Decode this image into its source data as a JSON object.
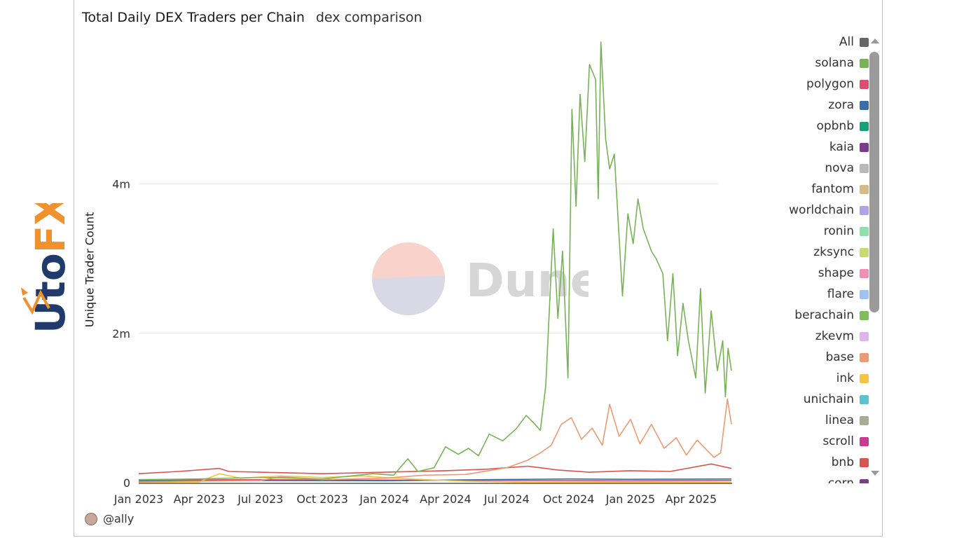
{
  "chart_data": {
    "type": "line",
    "title": "Total Daily DEX Traders per Chain",
    "subtitle": "dex comparison",
    "xlabel": "",
    "ylabel": "Unique Trader Count",
    "x_ticks": [
      "Jan 2023",
      "Apr 2023",
      "Jul 2023",
      "Oct 2023",
      "Jan 2024",
      "Apr 2024",
      "Jul 2024",
      "Oct 2024",
      "Jan 2025",
      "Apr 2025"
    ],
    "x_range": [
      "2023-01-01",
      "2025-06-01"
    ],
    "y_ticks": [
      {
        "value": 0,
        "label": "0"
      },
      {
        "value": 2000000,
        "label": "2m"
      },
      {
        "value": 4000000,
        "label": "4m"
      }
    ],
    "ylim": [
      0,
      5900000
    ],
    "grid": "horizontal",
    "legend_position": "right",
    "series": [
      {
        "name": "solana",
        "color": "#77b356",
        "points": [
          [
            "2023-01-01",
            40000
          ],
          [
            "2023-04-01",
            50000
          ],
          [
            "2023-07-01",
            70000
          ],
          [
            "2023-10-01",
            50000
          ],
          [
            "2023-12-15",
            120000
          ],
          [
            "2024-01-15",
            100000
          ],
          [
            "2024-02-05",
            320000
          ],
          [
            "2024-02-20",
            150000
          ],
          [
            "2024-03-15",
            200000
          ],
          [
            "2024-04-01",
            480000
          ],
          [
            "2024-04-20",
            380000
          ],
          [
            "2024-05-05",
            460000
          ],
          [
            "2024-05-20",
            360000
          ],
          [
            "2024-06-05",
            650000
          ],
          [
            "2024-06-25",
            560000
          ],
          [
            "2024-07-15",
            720000
          ],
          [
            "2024-07-30",
            900000
          ],
          [
            "2024-08-10",
            800000
          ],
          [
            "2024-08-20",
            700000
          ],
          [
            "2024-08-28",
            1300000
          ],
          [
            "2024-09-08",
            3400000
          ],
          [
            "2024-09-15",
            2200000
          ],
          [
            "2024-09-22",
            3100000
          ],
          [
            "2024-09-30",
            1400000
          ],
          [
            "2024-10-06",
            5000000
          ],
          [
            "2024-10-12",
            3700000
          ],
          [
            "2024-10-18",
            5200000
          ],
          [
            "2024-10-25",
            4300000
          ],
          [
            "2024-11-01",
            5600000
          ],
          [
            "2024-11-10",
            5400000
          ],
          [
            "2024-11-14",
            3800000
          ],
          [
            "2024-11-18",
            5900000
          ],
          [
            "2024-11-25",
            4600000
          ],
          [
            "2024-12-01",
            4200000
          ],
          [
            "2024-12-08",
            4400000
          ],
          [
            "2024-12-20",
            2500000
          ],
          [
            "2024-12-28",
            3600000
          ],
          [
            "2025-01-05",
            3200000
          ],
          [
            "2025-01-12",
            3800000
          ],
          [
            "2025-01-20",
            3400000
          ],
          [
            "2025-02-01",
            3100000
          ],
          [
            "2025-02-08",
            3000000
          ],
          [
            "2025-02-18",
            2800000
          ],
          [
            "2025-02-25",
            1900000
          ],
          [
            "2025-03-05",
            2800000
          ],
          [
            "2025-03-12",
            1700000
          ],
          [
            "2025-03-20",
            2400000
          ],
          [
            "2025-03-28",
            1900000
          ],
          [
            "2025-04-08",
            1400000
          ],
          [
            "2025-04-15",
            2600000
          ],
          [
            "2025-04-22",
            1200000
          ],
          [
            "2025-05-01",
            2300000
          ],
          [
            "2025-05-10",
            1500000
          ],
          [
            "2025-05-18",
            1900000
          ],
          [
            "2025-05-22",
            1150000
          ],
          [
            "2025-05-26",
            1800000
          ],
          [
            "2025-05-31",
            1500000
          ]
        ]
      },
      {
        "name": "base",
        "color": "#ec9a72",
        "points": [
          [
            "2023-01-01",
            10000
          ],
          [
            "2023-07-01",
            30000
          ],
          [
            "2023-08-01",
            80000
          ],
          [
            "2023-10-01",
            40000
          ],
          [
            "2024-01-01",
            60000
          ],
          [
            "2024-03-01",
            100000
          ],
          [
            "2024-05-01",
            110000
          ],
          [
            "2024-07-01",
            200000
          ],
          [
            "2024-08-01",
            300000
          ],
          [
            "2024-08-20",
            400000
          ],
          [
            "2024-09-05",
            500000
          ],
          [
            "2024-09-20",
            780000
          ],
          [
            "2024-10-05",
            870000
          ],
          [
            "2024-10-20",
            580000
          ],
          [
            "2024-11-05",
            730000
          ],
          [
            "2024-11-20",
            500000
          ],
          [
            "2024-12-01",
            1050000
          ],
          [
            "2024-12-15",
            620000
          ],
          [
            "2025-01-01",
            850000
          ],
          [
            "2025-01-15",
            520000
          ],
          [
            "2025-02-01",
            780000
          ],
          [
            "2025-02-20",
            460000
          ],
          [
            "2025-03-10",
            600000
          ],
          [
            "2025-03-25",
            370000
          ],
          [
            "2025-04-10",
            570000
          ],
          [
            "2025-04-25",
            430000
          ],
          [
            "2025-05-05",
            340000
          ],
          [
            "2025-05-15",
            400000
          ],
          [
            "2025-05-25",
            1120000
          ],
          [
            "2025-05-31",
            780000
          ]
        ]
      },
      {
        "name": "bnb",
        "color": "#d9534f",
        "points": [
          [
            "2023-01-01",
            120000
          ],
          [
            "2023-03-01",
            150000
          ],
          [
            "2023-05-01",
            190000
          ],
          [
            "2023-05-15",
            150000
          ],
          [
            "2023-07-01",
            140000
          ],
          [
            "2023-10-01",
            120000
          ],
          [
            "2024-01-01",
            140000
          ],
          [
            "2024-04-01",
            160000
          ],
          [
            "2024-06-01",
            180000
          ],
          [
            "2024-08-01",
            220000
          ],
          [
            "2024-09-15",
            170000
          ],
          [
            "2024-11-01",
            140000
          ],
          [
            "2025-01-01",
            160000
          ],
          [
            "2025-03-01",
            150000
          ],
          [
            "2025-05-01",
            250000
          ],
          [
            "2025-05-31",
            190000
          ]
        ]
      },
      {
        "name": "ink",
        "color": "#f4c542",
        "points": [
          [
            "2023-01-01",
            5000
          ],
          [
            "2023-04-01",
            10000
          ],
          [
            "2023-05-01",
            120000
          ],
          [
            "2023-06-01",
            60000
          ],
          [
            "2023-08-01",
            90000
          ],
          [
            "2023-10-01",
            70000
          ],
          [
            "2023-12-01",
            90000
          ],
          [
            "2024-01-15",
            60000
          ],
          [
            "2024-03-01",
            40000
          ],
          [
            "2024-05-01",
            20000
          ],
          [
            "2024-08-01",
            5000
          ],
          [
            "2025-05-31",
            5000
          ]
        ]
      },
      {
        "name": "zora",
        "color": "#3a6ea8",
        "points": [
          [
            "2023-01-01",
            20000
          ],
          [
            "2023-06-01",
            30000
          ],
          [
            "2024-01-01",
            25000
          ],
          [
            "2024-06-01",
            40000
          ],
          [
            "2024-10-01",
            50000
          ],
          [
            "2025-01-01",
            45000
          ],
          [
            "2025-05-31",
            50000
          ]
        ]
      },
      {
        "name": "polygon",
        "color": "#e04b72",
        "points": [
          [
            "2023-01-01",
            30000
          ],
          [
            "2023-06-01",
            40000
          ],
          [
            "2024-01-01",
            35000
          ],
          [
            "2024-06-01",
            30000
          ],
          [
            "2025-01-01",
            25000
          ],
          [
            "2025-05-31",
            30000
          ]
        ]
      }
    ]
  },
  "legend": {
    "items": [
      {
        "label": "All",
        "color": "#666666"
      },
      {
        "label": "solana",
        "color": "#77b356"
      },
      {
        "label": "polygon",
        "color": "#e04b72"
      },
      {
        "label": "zora",
        "color": "#3a6ea8"
      },
      {
        "label": "opbnb",
        "color": "#16a17b"
      },
      {
        "label": "kaia",
        "color": "#7b3c8c"
      },
      {
        "label": "nova",
        "color": "#b9b9b9"
      },
      {
        "label": "fantom",
        "color": "#d6bc8a"
      },
      {
        "label": "worldchain",
        "color": "#b3a3e6"
      },
      {
        "label": "ronin",
        "color": "#8fe0ad"
      },
      {
        "label": "zksync",
        "color": "#c9da6e"
      },
      {
        "label": "shape",
        "color": "#f08fb4"
      },
      {
        "label": "flare",
        "color": "#9fc2f2"
      },
      {
        "label": "berachain",
        "color": "#7fbf5a"
      },
      {
        "label": "zkevm",
        "color": "#e0b3f0"
      },
      {
        "label": "base",
        "color": "#ec9a72"
      },
      {
        "label": "ink",
        "color": "#f4c542"
      },
      {
        "label": "unichain",
        "color": "#5bc2cf"
      },
      {
        "label": "linea",
        "color": "#a8ac93"
      },
      {
        "label": "scroll",
        "color": "#c93a91"
      },
      {
        "label": "bnb",
        "color": "#d9534f"
      },
      {
        "label": "corn",
        "color": "#7b3c8c"
      }
    ]
  },
  "author": "@ally",
  "watermark": {
    "text": "Dune"
  },
  "logo": {
    "text": "UtoFX",
    "icon": "growth-arrow-icon"
  }
}
